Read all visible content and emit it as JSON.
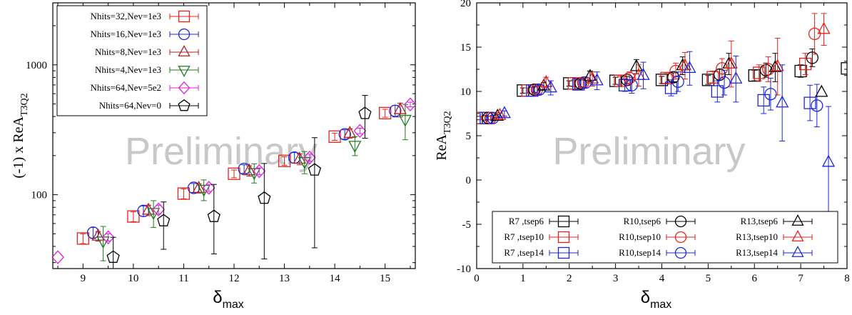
{
  "colors": {
    "red": "#e8211a",
    "blue": "#1a24e0",
    "darkred": "#b21e1e",
    "green": "#1e7a1e",
    "magenta": "#e01ee0",
    "black": "#000000"
  },
  "chart_data": [
    {
      "type": "scatter",
      "title": "",
      "watermark": "Preliminary",
      "xlabel_main": "δ",
      "xlabel_sub": "max",
      "ylabel_main": "(-1) x ReA",
      "ylabel_sub": "T3Q2",
      "x_scale": "linear",
      "y_scale": "log",
      "xlim": [
        8.4,
        15.6
      ],
      "ylim": [
        27,
        3000
      ],
      "x_ticks": [
        9,
        10,
        11,
        12,
        13,
        14,
        15
      ],
      "y_ticks": [
        100,
        1000
      ],
      "legend_position": "top-left",
      "series": [
        {
          "name": "Nhits=32,Nev=1e3",
          "color": "red",
          "marker": "square",
          "x": [
            9.0,
            10.0,
            11.0,
            12.0,
            13.0,
            14.0,
            15.0
          ],
          "y": [
            46,
            68,
            102,
            145,
            182,
            280,
            425
          ],
          "yerr": [
            4,
            6,
            9,
            10,
            14,
            18,
            30
          ]
        },
        {
          "name": "Nhits=16,Nev=1e3",
          "color": "blue",
          "marker": "circle",
          "x": [
            9.2,
            10.2,
            11.2,
            12.2,
            13.2,
            14.2,
            15.2
          ],
          "y": [
            51,
            75,
            113,
            158,
            193,
            292,
            442
          ],
          "yerr": [
            5,
            7,
            9,
            12,
            18,
            24,
            45
          ]
        },
        {
          "name": "Nhits=8,Nev=1e3",
          "color": "darkred",
          "marker": "triangle-up",
          "x": [
            9.3,
            10.3,
            11.3,
            12.3,
            13.3,
            14.3,
            15.3
          ],
          "y": [
            48,
            76,
            112,
            153,
            188,
            297,
            452
          ],
          "yerr": [
            4,
            7,
            9,
            14,
            18,
            24,
            55
          ]
        },
        {
          "name": "Nhits=4,Nev=1e3",
          "color": "green",
          "marker": "triangle-down",
          "x": [
            9.4,
            10.4,
            11.4,
            12.4,
            13.4,
            14.4,
            15.4
          ],
          "y": [
            44,
            73,
            110,
            148,
            180,
            240,
            380
          ],
          "yerr": [
            13,
            17,
            20,
            25,
            35,
            40,
            115
          ]
        },
        {
          "name": "Nhits=64,Nev=5e2",
          "color": "magenta",
          "marker": "diamond",
          "x": [
            8.5,
            9.5,
            10.5,
            11.5,
            12.5,
            13.5,
            14.5,
            15.5
          ],
          "y": [
            33,
            47,
            77,
            113,
            152,
            193,
            310,
            495
          ],
          "yerr": [
            0,
            3,
            6,
            7,
            9,
            12,
            15,
            20
          ]
        },
        {
          "name": "Nhits=64,Nev=0",
          "color": "black",
          "marker": "pentagon",
          "x": [
            9.6,
            10.6,
            11.6,
            12.6,
            13.6,
            14.6
          ],
          "y": [
            33,
            63,
            68,
            94,
            155,
            422
          ],
          "yerr_low": [
            10,
            25,
            33,
            62,
            116,
            150
          ],
          "yerr_high": [
            14,
            25,
            52,
            80,
            120,
            160
          ]
        }
      ]
    },
    {
      "type": "scatter",
      "title": "",
      "watermark": "Preliminary",
      "xlabel_main": "δ",
      "xlabel_sub": "max",
      "ylabel_main": "ReA",
      "ylabel_sub": "T3Q2",
      "x_scale": "linear",
      "y_scale": "linear",
      "xlim": [
        0,
        8
      ],
      "ylim": [
        -10,
        20
      ],
      "x_ticks": [
        0,
        1,
        2,
        3,
        4,
        5,
        6,
        7,
        8
      ],
      "y_ticks": [
        -10,
        -5,
        0,
        5,
        10,
        15,
        20
      ],
      "legend_position": "bottom",
      "legend_columns": 3,
      "series": [
        {
          "name": "R7 ,tsep6",
          "color": "black",
          "marker": "square",
          "x": [
            0.0,
            1.0,
            2.0,
            3.0,
            4.0,
            5.0,
            6.0,
            7.0,
            8.0
          ],
          "y": [
            7.0,
            10.1,
            10.9,
            11.2,
            11.3,
            11.3,
            11.8,
            12.3,
            12.6
          ],
          "yerr": [
            0.2,
            0.3,
            0.3,
            0.4,
            0.4,
            0.5,
            0.6,
            0.7,
            0.8
          ]
        },
        {
          "name": "R7 ,tsep10",
          "color": "red",
          "marker": "square",
          "x": [
            0.1,
            1.1,
            2.1,
            3.1,
            4.1,
            5.1,
            6.1,
            7.1
          ],
          "y": [
            7.0,
            10.1,
            10.9,
            11.2,
            11.5,
            11.6,
            12.1,
            13.1
          ],
          "yerr": [
            0.2,
            0.3,
            0.4,
            0.5,
            0.6,
            0.7,
            0.9,
            1.2
          ]
        },
        {
          "name": "R7 ,tsep14",
          "color": "blue",
          "marker": "square",
          "x": [
            0.2,
            1.2,
            2.2,
            3.2,
            4.2,
            5.2,
            6.2,
            7.2
          ],
          "y": [
            7.0,
            10.1,
            10.8,
            10.7,
            10.4,
            10.0,
            9.0,
            8.7
          ],
          "yerr": [
            0.3,
            0.4,
            0.5,
            0.7,
            0.9,
            1.2,
            1.5,
            2.0
          ]
        },
        {
          "name": "R10,tsep6",
          "color": "black",
          "marker": "circle",
          "x": [
            0.25,
            1.25,
            2.25,
            3.25,
            4.25,
            5.25,
            6.25,
            7.25
          ],
          "y": [
            7.0,
            10.2,
            10.9,
            11.3,
            11.6,
            11.9,
            12.4,
            13.8
          ],
          "yerr": [
            0.2,
            0.3,
            0.4,
            0.4,
            0.5,
            0.6,
            0.8,
            1.0
          ]
        },
        {
          "name": "R10,tsep10",
          "color": "red",
          "marker": "circle",
          "x": [
            0.3,
            1.3,
            2.3,
            3.3,
            4.3,
            5.3,
            6.3,
            7.3
          ],
          "y": [
            7.0,
            10.2,
            11.0,
            11.5,
            12.3,
            12.6,
            12.5,
            16.5
          ],
          "yerr": [
            0.2,
            0.4,
            0.5,
            0.7,
            0.9,
            1.1,
            1.4,
            2.3
          ]
        },
        {
          "name": "R10,tsep14",
          "color": "blue",
          "marker": "circle",
          "x": [
            0.35,
            1.35,
            2.35,
            3.35,
            4.35,
            5.35,
            6.35,
            7.35
          ],
          "y": [
            7.0,
            10.2,
            11.0,
            10.7,
            11.1,
            11.0,
            9.7,
            8.4
          ],
          "yerr": [
            0.3,
            0.5,
            0.6,
            0.9,
            1.1,
            1.4,
            1.8,
            2.4
          ]
        },
        {
          "name": "R13,tsep6",
          "color": "black",
          "marker": "triangle-up",
          "x": [
            0.45,
            1.45,
            2.45,
            3.45,
            4.45,
            5.45,
            6.45,
            7.45
          ],
          "y": [
            7.2,
            10.6,
            11.7,
            12.8,
            12.9,
            13.1,
            12.7,
            9.9
          ],
          "yerr": [
            0.2,
            0.4,
            0.6,
            0.8,
            1.0,
            1.2,
            1.6,
            0.0
          ]
        },
        {
          "name": "R13,tsep10",
          "color": "red",
          "marker": "triangle-up",
          "x": [
            0.5,
            1.5,
            2.5,
            3.5,
            4.5,
            5.5,
            6.5,
            7.5
          ],
          "y": [
            7.3,
            11.0,
            11.4,
            11.8,
            12.9,
            13.1,
            12.8,
            17.0
          ],
          "yerr": [
            0.3,
            0.6,
            0.8,
            1.2,
            1.5,
            2.6,
            3.2,
            1.8
          ]
        },
        {
          "name": "R13,tsep14",
          "color": "blue",
          "marker": "triangle-up",
          "x": [
            0.6,
            1.6,
            2.6,
            3.6,
            4.6,
            5.6,
            6.6,
            7.6
          ],
          "y": [
            7.5,
            10.4,
            11.2,
            11.8,
            12.6,
            11.4,
            8.7,
            2.0
          ],
          "yerr": [
            0.3,
            0.8,
            1.0,
            1.5,
            1.9,
            2.6,
            4.3,
            6.3
          ]
        }
      ]
    }
  ]
}
